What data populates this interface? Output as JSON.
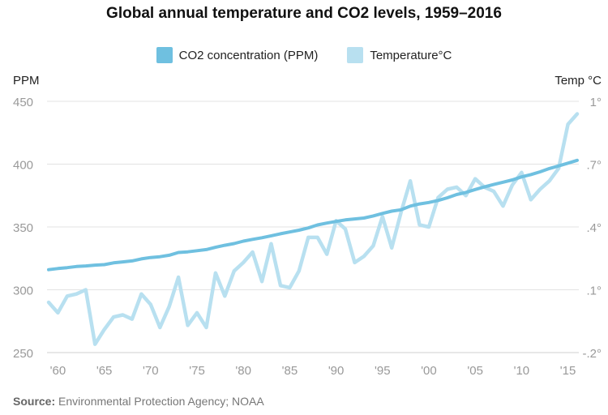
{
  "chart_data": {
    "type": "line",
    "title": "Global annual temperature and CO2 levels, 1959–2016",
    "y_left_label": "PPM",
    "y_right_label": "Temp °C",
    "y_left_ticks": [
      250,
      300,
      350,
      400,
      450
    ],
    "y_right_ticks": [
      "-.2°",
      ".1°",
      ".4°",
      ".7°",
      "1°"
    ],
    "y_right_values": [
      -0.2,
      0.1,
      0.4,
      0.7,
      1.0
    ],
    "x_ticks": [
      "'60",
      "'65",
      "'70",
      "'75",
      "'80",
      "'85",
      "'90",
      "'95",
      "'00",
      "'05",
      "'10",
      "'15"
    ],
    "x_tick_years": [
      1960,
      1965,
      1970,
      1975,
      1980,
      1985,
      1990,
      1995,
      2000,
      2005,
      2010,
      2015
    ],
    "ylim_left": [
      250,
      450
    ],
    "ylim_right": [
      -0.2,
      1.0
    ],
    "xlim": [
      1959,
      2016
    ],
    "series": [
      {
        "name": "CO2 concentration (PPM)",
        "color": "#6fc0e0",
        "axis": "left",
        "years": [
          1959,
          1960,
          1961,
          1962,
          1963,
          1964,
          1965,
          1966,
          1967,
          1968,
          1969,
          1970,
          1971,
          1972,
          1973,
          1974,
          1975,
          1976,
          1977,
          1978,
          1979,
          1980,
          1981,
          1982,
          1983,
          1984,
          1985,
          1986,
          1987,
          1988,
          1989,
          1990,
          1991,
          1992,
          1993,
          1994,
          1995,
          1996,
          1997,
          1998,
          1999,
          2000,
          2001,
          2002,
          2003,
          2004,
          2005,
          2006,
          2007,
          2008,
          2009,
          2010,
          2011,
          2012,
          2013,
          2014,
          2015,
          2016
        ],
        "values": [
          316.0,
          316.9,
          317.6,
          318.5,
          319.0,
          319.6,
          320.0,
          321.4,
          322.2,
          323.0,
          324.6,
          325.7,
          326.3,
          327.5,
          329.7,
          330.2,
          331.1,
          332.0,
          333.8,
          335.4,
          336.8,
          338.7,
          340.1,
          341.4,
          343.0,
          344.6,
          346.0,
          347.4,
          349.2,
          351.6,
          353.1,
          354.4,
          355.6,
          356.4,
          357.1,
          358.8,
          360.8,
          362.6,
          363.7,
          366.6,
          368.3,
          369.5,
          371.1,
          373.2,
          375.8,
          377.5,
          379.8,
          381.9,
          383.8,
          385.6,
          387.4,
          389.9,
          391.7,
          393.9,
          396.5,
          398.6,
          400.8,
          403.0
        ]
      },
      {
        "name": "Temperature°C",
        "color": "#b8e0f0",
        "axis": "right",
        "years": [
          1959,
          1960,
          1961,
          1962,
          1963,
          1964,
          1965,
          1966,
          1967,
          1968,
          1969,
          1970,
          1971,
          1972,
          1973,
          1974,
          1975,
          1976,
          1977,
          1978,
          1979,
          1980,
          1981,
          1982,
          1983,
          1984,
          1985,
          1986,
          1987,
          1988,
          1989,
          1990,
          1991,
          1992,
          1993,
          1994,
          1995,
          1996,
          1997,
          1998,
          1999,
          2000,
          2001,
          2002,
          2003,
          2004,
          2005,
          2006,
          2007,
          2008,
          2009,
          2010,
          2011,
          2012,
          2013,
          2014,
          2015,
          2016
        ],
        "values": [
          0.04,
          -0.01,
          0.07,
          0.08,
          0.1,
          -0.16,
          -0.09,
          -0.03,
          -0.02,
          -0.04,
          0.08,
          0.03,
          -0.08,
          0.02,
          0.16,
          -0.07,
          -0.01,
          -0.08,
          0.18,
          0.07,
          0.19,
          0.23,
          0.28,
          0.14,
          0.32,
          0.12,
          0.11,
          0.19,
          0.35,
          0.35,
          0.27,
          0.43,
          0.39,
          0.23,
          0.26,
          0.31,
          0.45,
          0.3,
          0.47,
          0.62,
          0.41,
          0.4,
          0.54,
          0.58,
          0.59,
          0.55,
          0.63,
          0.59,
          0.57,
          0.5,
          0.6,
          0.66,
          0.53,
          0.58,
          0.62,
          0.68,
          0.89,
          0.94
        ]
      }
    ],
    "grid": true,
    "legend_position": "top-center"
  },
  "source": {
    "label": "Source:",
    "text": " Environmental Protection Agency; NOAA"
  }
}
